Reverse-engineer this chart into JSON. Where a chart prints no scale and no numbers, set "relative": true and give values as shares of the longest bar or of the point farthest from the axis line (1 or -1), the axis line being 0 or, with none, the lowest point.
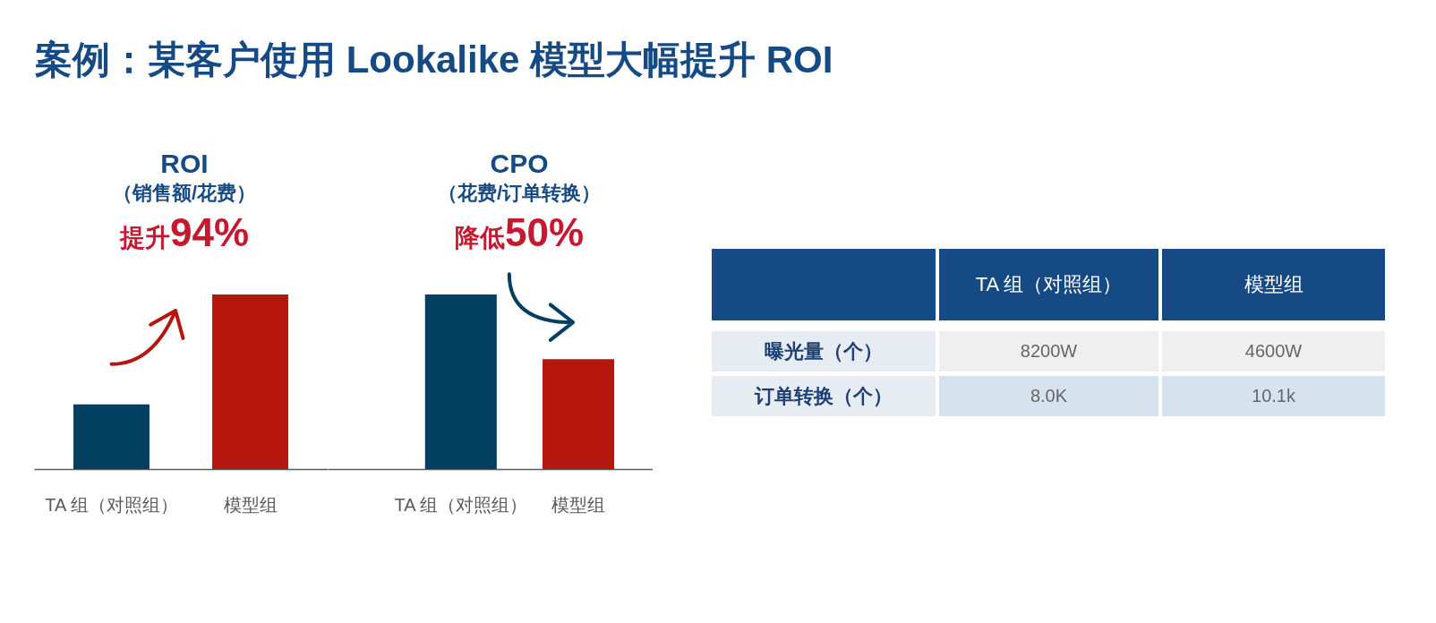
{
  "chart_data": [
    {
      "type": "other",
      "title": "案例：某客户使用 Lookalike 模型大幅提升 ROI"
    },
    {
      "type": "bar",
      "title": "ROI",
      "subtitle": "（销售额/花费）",
      "annotations": [
        "提升94%"
      ],
      "categories": [
        "TA 组（对照组）",
        "模型组"
      ],
      "values": [
        0.37,
        1
      ],
      "colors": [
        "#023f60",
        "#b5170f"
      ],
      "relative": true
    },
    {
      "type": "bar",
      "title": "CPO",
      "subtitle": "（花费/订单转换）",
      "annotations": [
        "降低50%"
      ],
      "categories": [
        "TA 组（对照组）",
        "模型组"
      ],
      "values": [
        1,
        0.63
      ],
      "colors": [
        "#023f60",
        "#b5170f"
      ],
      "relative": true
    },
    {
      "type": "other",
      "categories": [
        "TA 组（对照组）",
        "模型组"
      ],
      "y_categories": [
        "曝光量（个）",
        "订单转换（个）"
      ],
      "cell_labels": [
        [
          "8200W",
          "4600W"
        ],
        [
          "8.0K",
          "10.1k"
        ]
      ]
    }
  ]
}
